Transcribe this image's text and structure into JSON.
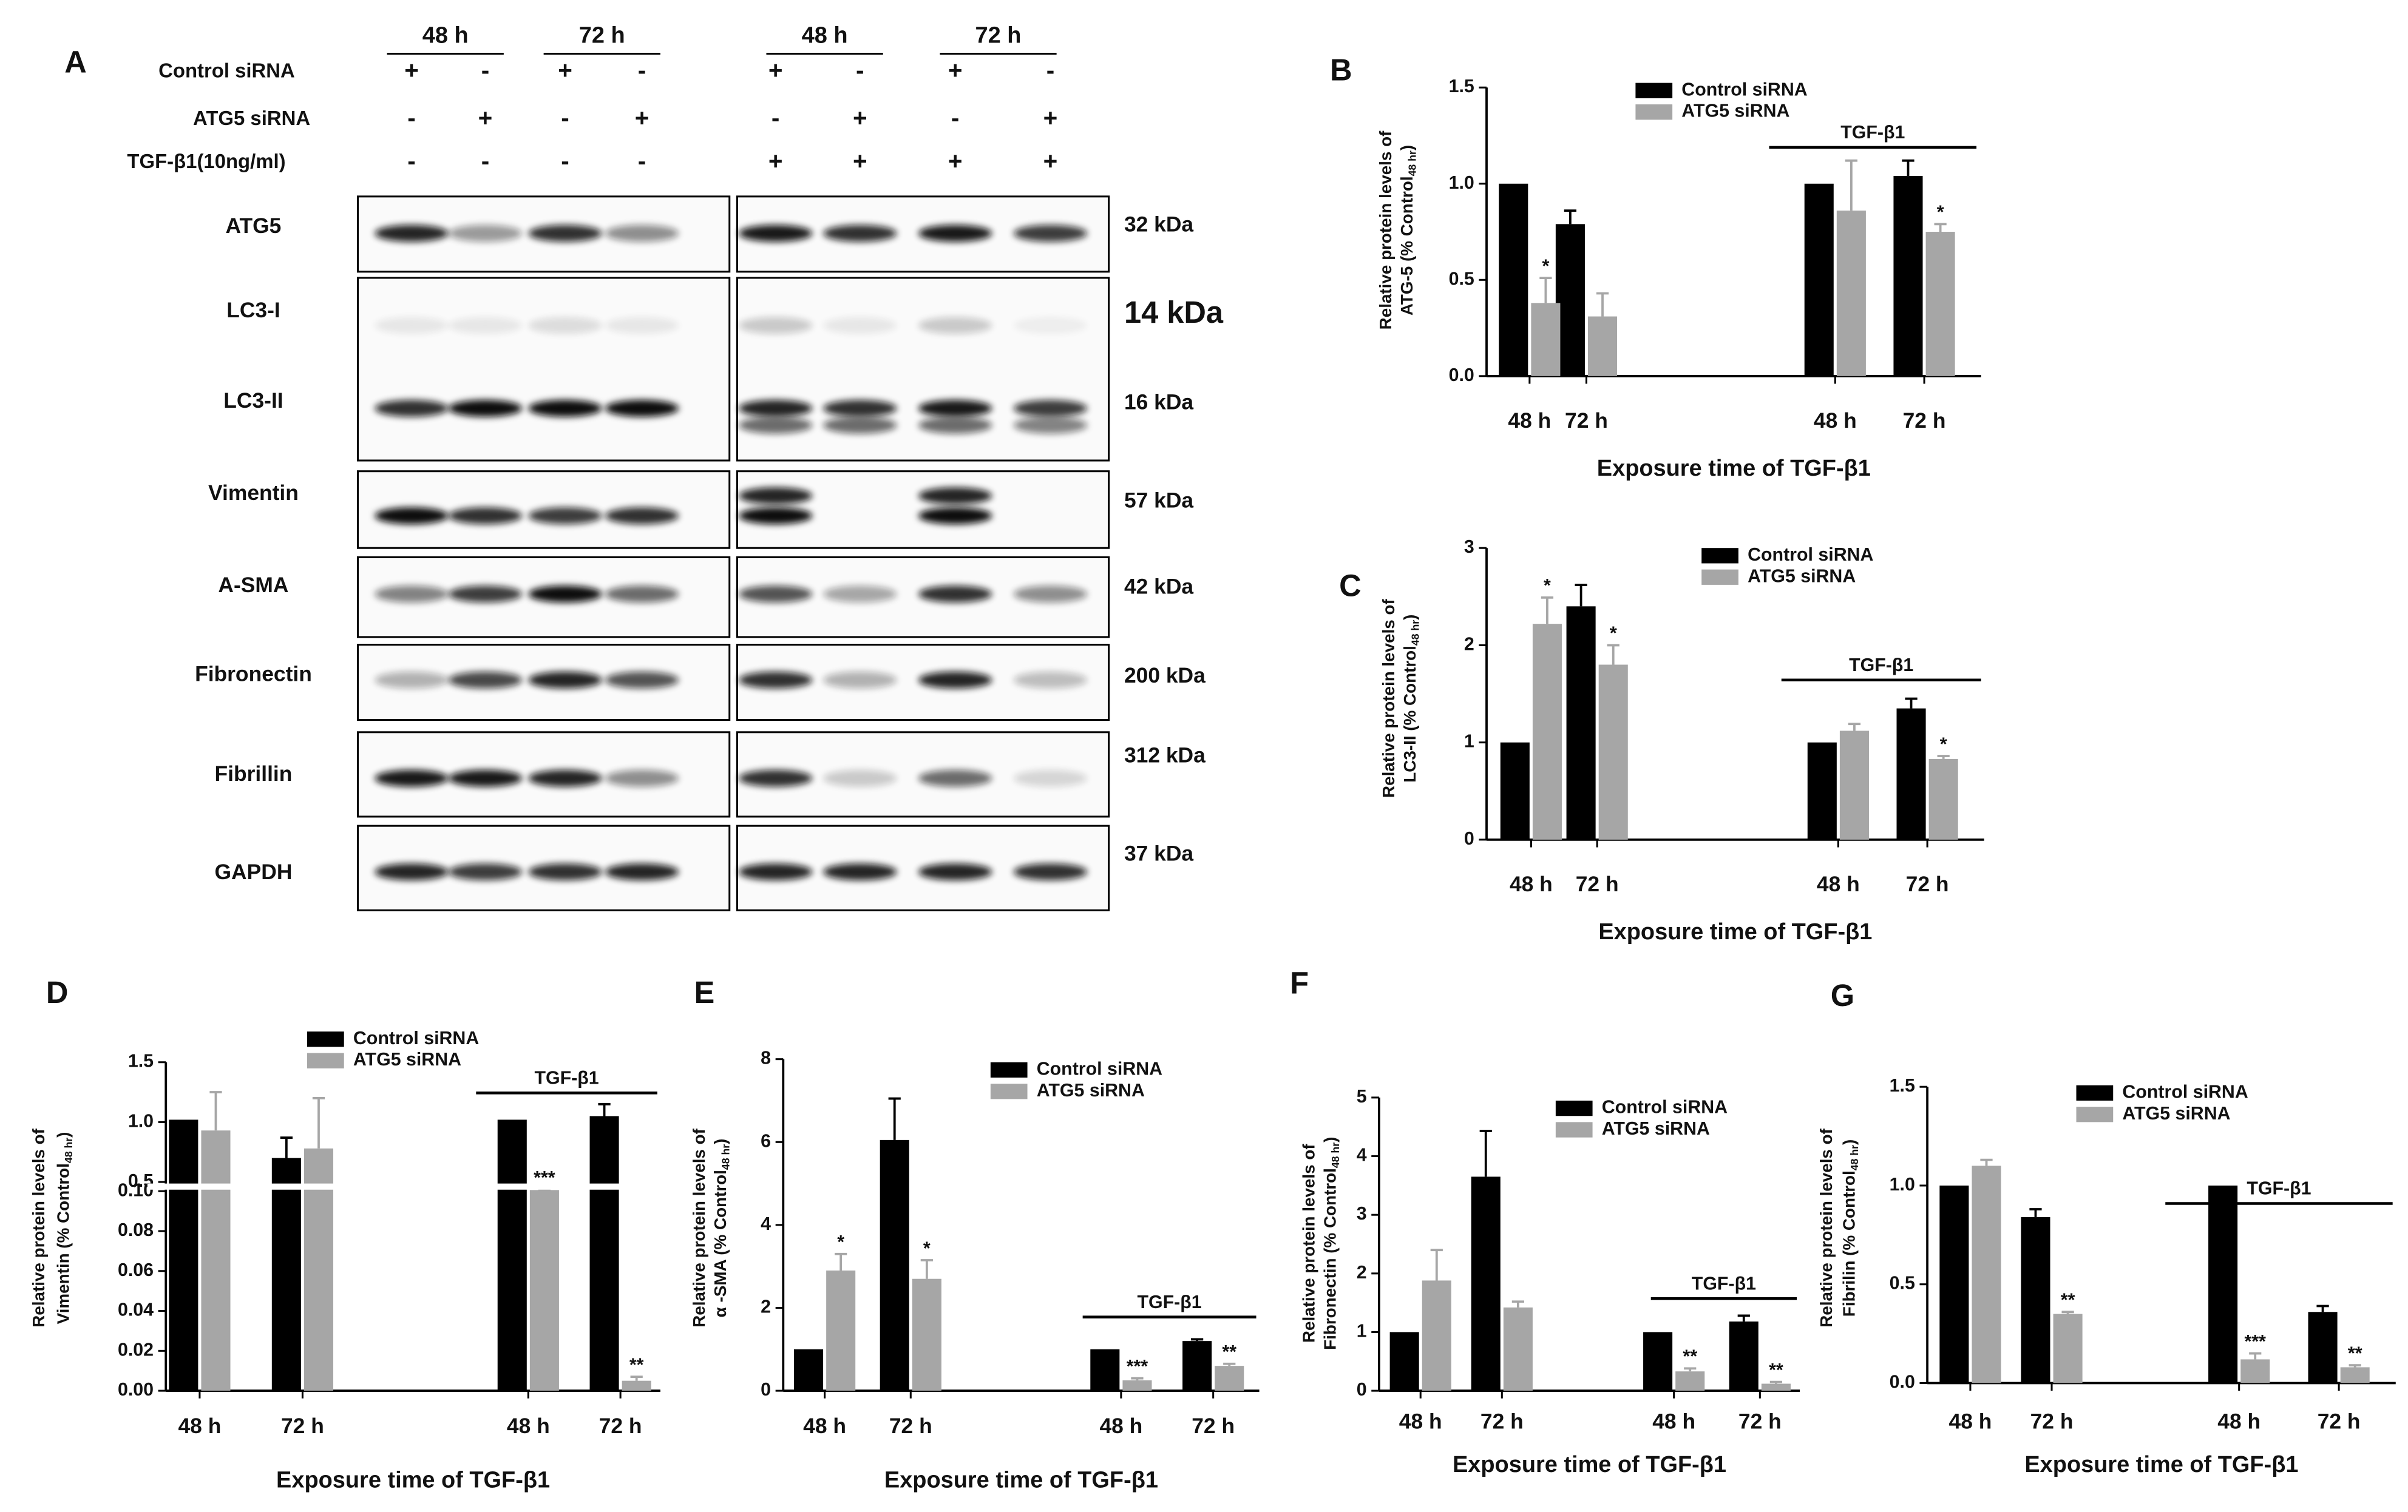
{
  "panel_a": {
    "letter": "A",
    "time_headers": [
      "48 h",
      "72 h",
      "48 h",
      "72 h"
    ],
    "conditions": [
      {
        "label": "Control siRNA",
        "signs": [
          "+",
          "-",
          "+",
          "-",
          "+",
          "-",
          "+",
          "-"
        ]
      },
      {
        "label": "ATG5 siRNA",
        "signs": [
          "-",
          "+",
          "-",
          "+",
          "-",
          "+",
          "-",
          "+"
        ]
      },
      {
        "label": "TGF-β1(10ng/ml)",
        "signs": [
          "-",
          "-",
          "-",
          "-",
          "+",
          "+",
          "+",
          "+"
        ]
      }
    ],
    "proteins": [
      {
        "name": "ATG5",
        "kda": "32 kDa"
      },
      {
        "name": "LC3-I",
        "kda": "14 kDa"
      },
      {
        "name": "LC3-II",
        "kda": "16 kDa"
      },
      {
        "name": "Vimentin",
        "kda": "57 kDa"
      },
      {
        "name": "A-SMA",
        "kda": "42 kDa"
      },
      {
        "name": "Fibronectin",
        "kda": "200 kDa"
      },
      {
        "name": "Fibrillin",
        "kda": "312 kDa"
      },
      {
        "name": "GAPDH",
        "kda": "37 kDa"
      }
    ]
  },
  "chart_data": [
    {
      "type": "bar",
      "panel": "B",
      "categories": [
        "48 h",
        "72 h",
        "48 h",
        "72 h"
      ],
      "series": [
        {
          "name": "Control siRNA",
          "color": "#000000",
          "values": [
            1.0,
            0.79,
            1.0,
            1.04
          ],
          "errors": [
            0,
            0.07,
            0,
            0.08
          ]
        },
        {
          "name": "ATG5 siRNA",
          "color": "#a6a6a6",
          "values": [
            0.38,
            0.31,
            0.86,
            0.75
          ],
          "errors": [
            0.13,
            0.12,
            0.26,
            0.04
          ],
          "significance": [
            "*",
            null,
            null,
            "*"
          ]
        }
      ],
      "ylim": [
        0,
        1.5
      ],
      "yticks": [
        {
          "value": 0,
          "label": "0.0"
        },
        0.5,
        {
          "value": 1,
          "label": "1.0"
        },
        1.5
      ],
      "ylabel": {
        "lines": [
          "Relative protein levels of",
          "ATG-5 (% Control"
        ],
        "sub": "48 hr",
        "end": ")"
      },
      "xlabel": "Exposure time of TGF-β1",
      "annotation": "TGF-β1"
    },
    {
      "type": "bar",
      "panel": "C",
      "categories": [
        "48 h",
        "72 h",
        "48 h",
        "72 h"
      ],
      "series": [
        {
          "name": "Control siRNA",
          "color": "#000000",
          "values": [
            1.0,
            2.4,
            1.0,
            1.35
          ],
          "errors": [
            0,
            0.22,
            0,
            0.1
          ]
        },
        {
          "name": "ATG5 siRNA",
          "color": "#a6a6a6",
          "values": [
            2.22,
            1.8,
            1.12,
            0.83
          ],
          "errors": [
            0.27,
            0.2,
            0.07,
            0.03
          ],
          "significance": [
            "*",
            "*",
            null,
            "*"
          ]
        }
      ],
      "ylim": [
        0,
        3
      ],
      "yticks": [
        0,
        1,
        2,
        3
      ],
      "ylabel": {
        "lines": [
          "Relative protein levels of",
          "LC3-II (% Control"
        ],
        "sub": "48 hr",
        "end": ")"
      },
      "xlabel": "Exposure time of TGF-β1",
      "annotation": "TGF-β1"
    },
    {
      "type": "bar",
      "panel": "D",
      "categories": [
        "48 h",
        "72 h",
        "48 h",
        "72 h"
      ],
      "series": [
        {
          "name": "Control siRNA",
          "color": "#000000",
          "values": [
            1.02,
            0.7,
            1.02,
            1.05
          ],
          "errors": [
            0,
            0.17,
            0,
            0.1
          ]
        },
        {
          "name": "ATG5 siRNA",
          "color": "#a6a6a6",
          "values": [
            0.93,
            0.78,
            0.15,
            0.005
          ],
          "errors": [
            0.32,
            0.42,
            0.02,
            0.002
          ],
          "significance": [
            null,
            null,
            "***",
            "**"
          ]
        }
      ],
      "ylim": [
        0,
        1.5
      ],
      "ybreak": [
        0.1,
        0.5
      ],
      "yticks": [
        {
          "value": 0,
          "label": "0.00"
        },
        {
          "value": 0.02,
          "label": "0.02"
        },
        {
          "value": 0.04,
          "label": "0.04"
        },
        {
          "value": 0.06,
          "label": "0.06"
        },
        {
          "value": 0.08,
          "label": "0.08"
        },
        {
          "value": 0.1,
          "label": "0.10"
        },
        0.5,
        {
          "value": 1,
          "label": "1.0"
        },
        1.5
      ],
      "ylabel": {
        "lines": [
          "Relative protein levels of",
          "Vimentin (% Control"
        ],
        "sub": "48 hr",
        "end": ")"
      },
      "xlabel": "Exposure time of TGF-β1",
      "annotation": "TGF-β1"
    },
    {
      "type": "bar",
      "panel": "E",
      "categories": [
        "48 h",
        "72 h",
        "48 h",
        "72 h"
      ],
      "series": [
        {
          "name": "Control siRNA",
          "color": "#000000",
          "values": [
            1.0,
            6.05,
            1.0,
            1.2
          ],
          "errors": [
            0,
            1.0,
            0,
            0.04
          ]
        },
        {
          "name": "ATG5 siRNA",
          "color": "#a6a6a6",
          "values": [
            2.9,
            2.7,
            0.25,
            0.6
          ],
          "errors": [
            0.4,
            0.45,
            0.05,
            0.05
          ],
          "significance": [
            "*",
            "*",
            "***",
            "**"
          ]
        }
      ],
      "ylim": [
        0,
        8
      ],
      "yticks": [
        0,
        2,
        4,
        6,
        8
      ],
      "ylabel": {
        "lines": [
          "Relative protein levels of",
          "α -SMA (% Control"
        ],
        "sub": "48 hr",
        "end": ")"
      },
      "xlabel": "Exposure time of TGF-β1",
      "annotation": "TGF-β1"
    },
    {
      "type": "bar",
      "panel": "F",
      "categories": [
        "48 h",
        "72 h",
        "48 h",
        "72 h"
      ],
      "series": [
        {
          "name": "Control siRNA",
          "color": "#000000",
          "values": [
            1.0,
            3.65,
            1.0,
            1.18
          ],
          "errors": [
            0,
            0.78,
            0,
            0.1
          ]
        },
        {
          "name": "ATG5 siRNA",
          "color": "#a6a6a6",
          "values": [
            1.88,
            1.42,
            0.33,
            0.12
          ],
          "errors": [
            0.52,
            0.1,
            0.05,
            0.03
          ],
          "significance": [
            null,
            null,
            "**",
            "**"
          ]
        }
      ],
      "ylim": [
        0,
        5
      ],
      "yticks": [
        0,
        1,
        2,
        3,
        4,
        5
      ],
      "ylabel": {
        "lines": [
          "Relative protein levels of",
          "Fibronectin (% Control"
        ],
        "sub": "48 hr",
        "end": ")"
      },
      "xlabel": "Exposure time of TGF-β1",
      "annotation": "TGF-β1"
    },
    {
      "type": "bar",
      "panel": "G",
      "categories": [
        "48 h",
        "72 h",
        "48 h",
        "72 h"
      ],
      "series": [
        {
          "name": "Control siRNA",
          "color": "#000000",
          "values": [
            1.0,
            0.84,
            1.0,
            0.36
          ],
          "errors": [
            0,
            0.04,
            0,
            0.03
          ]
        },
        {
          "name": "ATG5 siRNA",
          "color": "#a6a6a6",
          "values": [
            1.1,
            0.35,
            0.12,
            0.08
          ],
          "errors": [
            0.03,
            0.01,
            0.03,
            0.01
          ],
          "significance": [
            null,
            "**",
            "***",
            "**"
          ]
        }
      ],
      "ylim": [
        0,
        1.5
      ],
      "yticks": [
        {
          "value": 0,
          "label": "0.0"
        },
        0.5,
        {
          "value": 1,
          "label": "1.0"
        },
        1.5
      ],
      "ylabel": {
        "lines": [
          "Relative protein levels of",
          "Fibrilin (% Control"
        ],
        "sub": "48 hr",
        "end": ")"
      },
      "xlabel": "Exposure time of TGF-β1",
      "annotation": "TGF-β1"
    }
  ]
}
